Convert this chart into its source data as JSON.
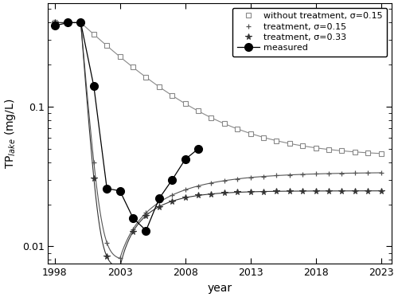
{
  "xlabel": "year",
  "ylabel": "TP$_{lake}$ (mg/L)",
  "ylim": [
    0.0075,
    0.55
  ],
  "xticks": [
    1998,
    2003,
    2008,
    2013,
    2018,
    2023
  ],
  "color_no_treat": "#888888",
  "color_treat_015": "#555555",
  "color_treat_033": "#555555",
  "color_measured": "#000000",
  "legend_labels": [
    "without treatment, σ=0.15",
    "treatment, σ=0.15",
    "treatment, σ=0.33",
    "measured"
  ],
  "measured_years": [
    1998,
    1999,
    2000,
    2001,
    2002,
    2003,
    2004,
    2005,
    2006,
    2007,
    2008,
    2009
  ],
  "measured_values": [
    0.38,
    0.4,
    0.4,
    0.14,
    0.026,
    0.025,
    0.016,
    0.013,
    0.022,
    0.03,
    0.042,
    0.05
  ]
}
